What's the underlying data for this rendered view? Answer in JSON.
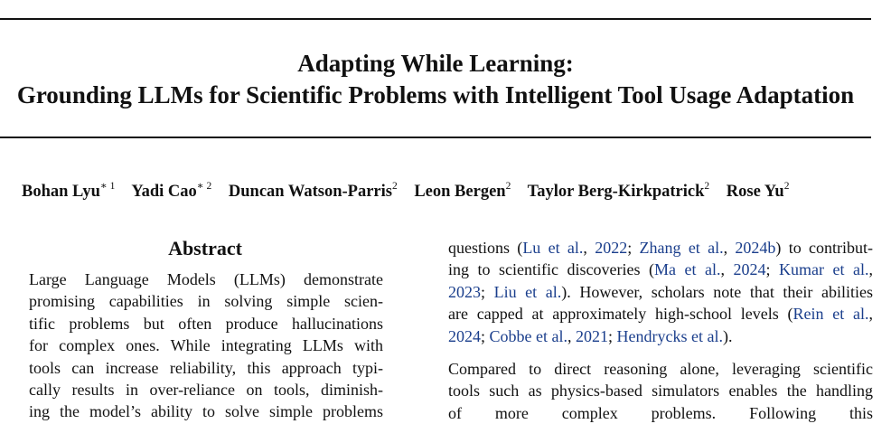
{
  "title": {
    "line1": "Adapting While Learning:",
    "line2": "Grounding LLMs for Scientific Problems with Intelligent Tool Usage Adaptation"
  },
  "authors": [
    {
      "name": "Bohan Lyu",
      "mark": "∗ 1"
    },
    {
      "name": "Yadi Cao",
      "mark": "∗ 2"
    },
    {
      "name": "Duncan Watson-Parris",
      "mark": "2"
    },
    {
      "name": "Leon Bergen",
      "mark": "2"
    },
    {
      "name": "Taylor Berg-Kirkpatrick",
      "mark": "2"
    },
    {
      "name": "Rose Yu",
      "mark": "2"
    }
  ],
  "abstract": {
    "heading": "Abstract",
    "lines": [
      "Large Language Models (LLMs) demonstrate",
      "promising capabilities in solving simple scien-",
      "tific problems but often produce hallucinations",
      "for complex ones. While integrating LLMs with",
      "tools can increase reliability, this approach typi-",
      "cally results in over-reliance on tools, diminish-",
      "ing the model’s ability to solve simple problems"
    ]
  },
  "body": {
    "p1": {
      "l1": {
        "t0": "questions (",
        "c1": "Lu et al.",
        "t1": ", ",
        "c2": "2022",
        "t2": "; ",
        "c3": "Zhang et al.",
        "t3": ", ",
        "c4": "2024b",
        "t4": ") to contribut-"
      },
      "l2": {
        "t0": "ing to scientific discoveries (",
        "c1": "Ma et al.",
        "t1": ", ",
        "c2": "2024",
        "t2": "; ",
        "c3": "Kumar et al.",
        "t3": ","
      },
      "l3": {
        "c1": "2023",
        "t1": "; ",
        "c2": "Liu et al.",
        "t2": "). However, scholars note that their abilities"
      },
      "l4": {
        "t0": "are capped at approximately high-school levels (",
        "c1": "Rein et al.",
        "t1": ","
      },
      "l5": {
        "c1": "2024",
        "t1": "; ",
        "c2": "Cobbe et al.",
        "t2": ", ",
        "c3": "2021",
        "t3": "; ",
        "c4": "Hendrycks et al.",
        "t4": ")."
      }
    },
    "p2": {
      "lines": [
        "Compared to direct reasoning alone, leveraging scientific",
        "tools such as physics-based simulators enables the handling",
        "of more complex problems. Following this"
      ]
    }
  },
  "colors": {
    "citation": "#1a3e8c",
    "text": "#111111"
  }
}
